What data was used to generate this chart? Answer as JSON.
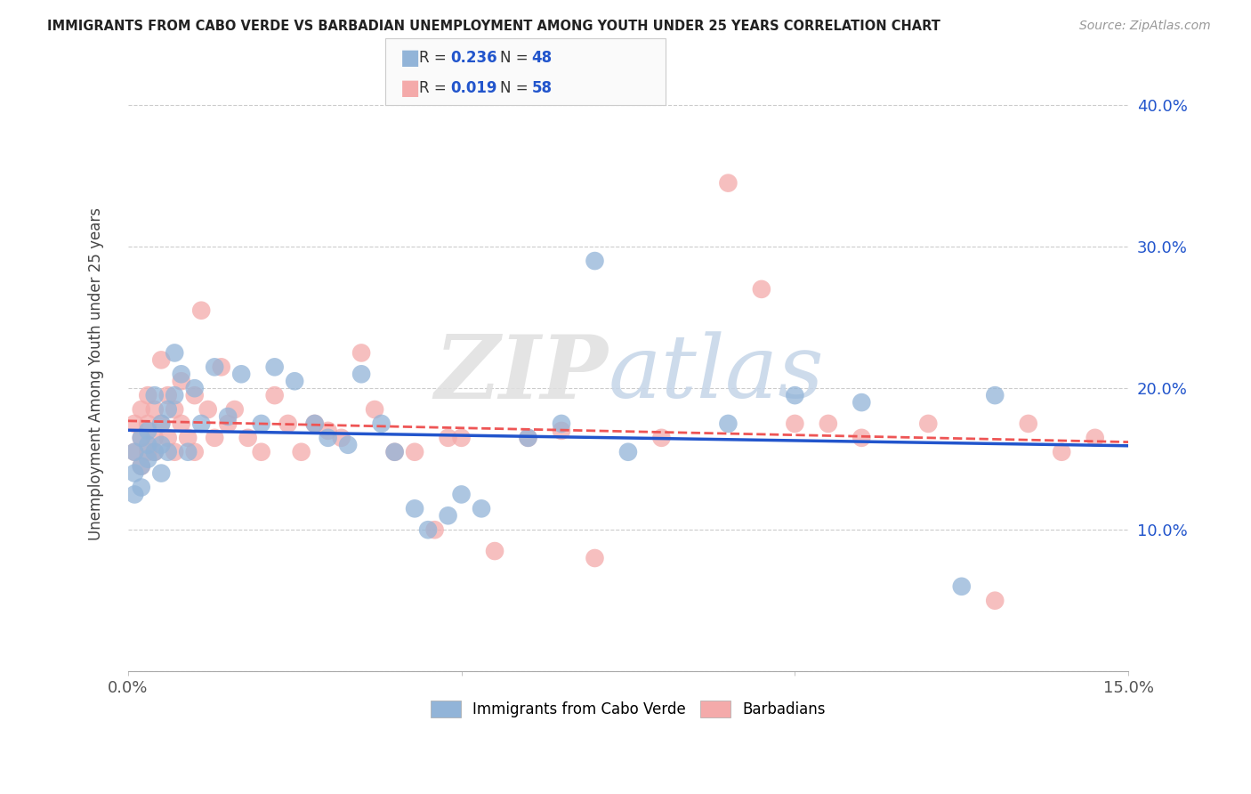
{
  "title": "IMMIGRANTS FROM CABO VERDE VS BARBADIAN UNEMPLOYMENT AMONG YOUTH UNDER 25 YEARS CORRELATION CHART",
  "source": "Source: ZipAtlas.com",
  "ylabel": "Unemployment Among Youth under 25 years",
  "legend_label1": "Immigrants from Cabo Verde",
  "legend_label2": "Barbadians",
  "xlim": [
    0.0,
    0.15
  ],
  "ylim": [
    0.0,
    0.42
  ],
  "xtick_vals": [
    0.0,
    0.05,
    0.1,
    0.15
  ],
  "xtick_labels": [
    "0.0%",
    "",
    "",
    "15.0%"
  ],
  "ytick_vals": [
    0.0,
    0.1,
    0.2,
    0.3,
    0.4
  ],
  "ytick_labels": [
    "",
    "10.0%",
    "20.0%",
    "30.0%",
    "40.0%"
  ],
  "color_blue": "#92B4D8",
  "color_pink": "#F4AAAA",
  "color_blue_line": "#2255CC",
  "color_pink_line": "#EE5555",
  "watermark_zip": "ZIP",
  "watermark_atlas": "atlas",
  "cabo_verde_x": [
    0.001,
    0.001,
    0.001,
    0.002,
    0.002,
    0.002,
    0.003,
    0.003,
    0.003,
    0.004,
    0.004,
    0.005,
    0.005,
    0.005,
    0.006,
    0.006,
    0.007,
    0.007,
    0.008,
    0.009,
    0.01,
    0.011,
    0.013,
    0.015,
    0.017,
    0.02,
    0.022,
    0.025,
    0.028,
    0.03,
    0.033,
    0.035,
    0.038,
    0.04,
    0.043,
    0.045,
    0.048,
    0.05,
    0.053,
    0.06,
    0.065,
    0.07,
    0.075,
    0.09,
    0.1,
    0.11,
    0.125,
    0.13
  ],
  "cabo_verde_y": [
    0.155,
    0.14,
    0.125,
    0.165,
    0.145,
    0.13,
    0.16,
    0.17,
    0.15,
    0.195,
    0.155,
    0.175,
    0.16,
    0.14,
    0.185,
    0.155,
    0.225,
    0.195,
    0.21,
    0.155,
    0.2,
    0.175,
    0.215,
    0.18,
    0.21,
    0.175,
    0.215,
    0.205,
    0.175,
    0.165,
    0.16,
    0.21,
    0.175,
    0.155,
    0.115,
    0.1,
    0.11,
    0.125,
    0.115,
    0.165,
    0.175,
    0.29,
    0.155,
    0.175,
    0.195,
    0.19,
    0.06,
    0.195
  ],
  "barbadian_x": [
    0.001,
    0.001,
    0.002,
    0.002,
    0.002,
    0.003,
    0.003,
    0.003,
    0.004,
    0.004,
    0.004,
    0.005,
    0.005,
    0.006,
    0.006,
    0.007,
    0.007,
    0.008,
    0.008,
    0.009,
    0.01,
    0.01,
    0.011,
    0.012,
    0.013,
    0.014,
    0.015,
    0.016,
    0.018,
    0.02,
    0.022,
    0.024,
    0.026,
    0.028,
    0.03,
    0.032,
    0.035,
    0.037,
    0.04,
    0.043,
    0.046,
    0.048,
    0.05,
    0.055,
    0.06,
    0.065,
    0.07,
    0.08,
    0.09,
    0.095,
    0.1,
    0.105,
    0.11,
    0.12,
    0.13,
    0.135,
    0.14,
    0.145
  ],
  "barbadian_y": [
    0.175,
    0.155,
    0.165,
    0.145,
    0.185,
    0.155,
    0.175,
    0.195,
    0.165,
    0.185,
    0.155,
    0.22,
    0.175,
    0.165,
    0.195,
    0.185,
    0.155,
    0.205,
    0.175,
    0.165,
    0.195,
    0.155,
    0.255,
    0.185,
    0.165,
    0.215,
    0.175,
    0.185,
    0.165,
    0.155,
    0.195,
    0.175,
    0.155,
    0.175,
    0.17,
    0.165,
    0.225,
    0.185,
    0.155,
    0.155,
    0.1,
    0.165,
    0.165,
    0.085,
    0.165,
    0.17,
    0.08,
    0.165,
    0.345,
    0.27,
    0.175,
    0.175,
    0.165,
    0.175,
    0.05,
    0.175,
    0.155,
    0.165
  ]
}
